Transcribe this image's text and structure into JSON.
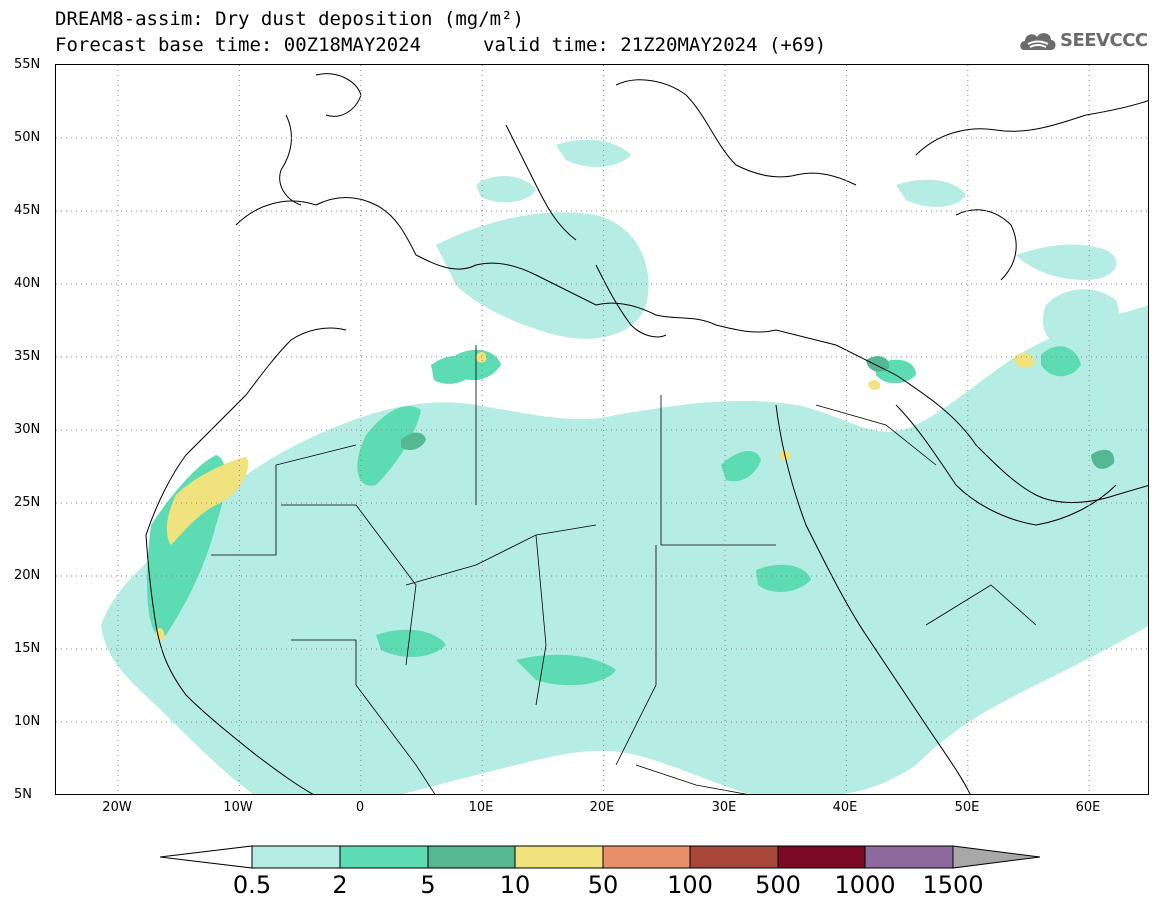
{
  "header": {
    "title_line1": "DREAM8-assim: Dry dust deposition (mg/m²)",
    "title_line2_base": "Forecast base time: 00Z18MAY2024",
    "title_line2_valid": "valid time: 21Z20MAY2024 (+69)",
    "logo_text": "SEEVCCC"
  },
  "map": {
    "lat_labels": [
      "55N",
      "50N",
      "45N",
      "40N",
      "35N",
      "30N",
      "25N",
      "20N",
      "15N",
      "10N",
      "5N"
    ],
    "lon_labels": [
      "20W",
      "10W",
      "0",
      "10E",
      "20E",
      "30E",
      "40E",
      "50E",
      "60E"
    ],
    "colors": {
      "level_0_5": "#b5ece4",
      "level_2": "#5ddcb4",
      "level_5": "#55b893",
      "level_10": "#f0e27c",
      "level_50": "#e98f6a",
      "level_100": "#a8483c",
      "level_500": "#7d0a24",
      "level_1000": "#8c6a9e",
      "level_1500": "#a8a8a8",
      "coast": "#000000"
    }
  },
  "colorbar": {
    "labels": [
      "0.5",
      "2",
      "5",
      "10",
      "50",
      "100",
      "500",
      "1000",
      "1500"
    ]
  }
}
